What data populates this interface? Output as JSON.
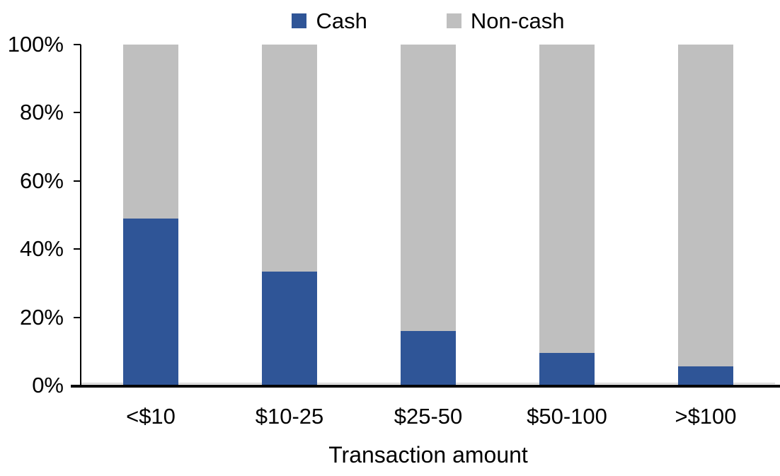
{
  "chart_data": {
    "type": "bar",
    "stacked": true,
    "title": "",
    "xlabel": "Transaction amount",
    "ylabel": "",
    "categories": [
      "<$10",
      "$10-25",
      "$25-50",
      "$50-100",
      ">$100"
    ],
    "series": [
      {
        "name": "Cash",
        "color": "#2F5597",
        "values": [
          49,
          33.5,
          16,
          9.5,
          5.5
        ]
      },
      {
        "name": "Non-cash",
        "color": "#BFBFBF",
        "values": [
          51,
          66.5,
          84,
          90.5,
          94.5
        ]
      }
    ],
    "ylim": [
      0,
      100
    ],
    "yticks": [
      0,
      20,
      40,
      60,
      80,
      100
    ],
    "ytick_labels": [
      "0%",
      "20%",
      "40%",
      "60%",
      "80%",
      "100%"
    ],
    "grid": false,
    "legend_position": "top-center",
    "plot_background": "#FFFFFF",
    "axis_color": "#000000",
    "baseline_gridline_color": "#D9D9D9",
    "text_color": "#000000"
  }
}
